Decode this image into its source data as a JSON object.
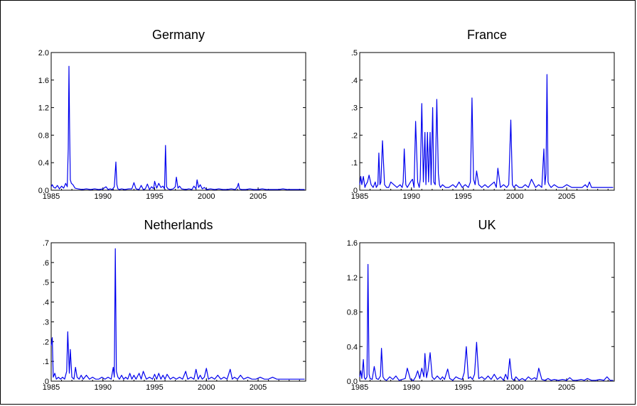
{
  "chart_data": [
    {
      "type": "line",
      "title": "Germany",
      "xlim": [
        1985,
        2009.6
      ],
      "ylim": [
        0,
        2.0
      ],
      "x_ticks": [
        "1985",
        "1990",
        "1995",
        "2000",
        "2005"
      ],
      "y_ticks": [
        "0.0",
        "0.4",
        "0.8",
        "1.2",
        "1.6",
        "2.0"
      ],
      "grid": false,
      "line_color": "#0000ee",
      "x": [
        1985.0,
        1985.1,
        1985.25,
        1985.4,
        1985.6,
        1985.8,
        1986.0,
        1986.2,
        1986.4,
        1986.55,
        1986.65,
        1986.72,
        1986.78,
        1986.85,
        1986.95,
        1987.1,
        1987.3,
        1987.6,
        1988.0,
        1988.4,
        1988.8,
        1989.2,
        1989.6,
        1990.0,
        1990.3,
        1990.5,
        1990.7,
        1990.9,
        1991.1,
        1991.25,
        1991.35,
        1991.45,
        1991.6,
        1991.8,
        1992.1,
        1992.5,
        1992.8,
        1993.0,
        1993.2,
        1993.5,
        1993.7,
        1993.9,
        1994.1,
        1994.3,
        1994.5,
        1994.7,
        1994.9,
        1995.0,
        1995.2,
        1995.4,
        1995.6,
        1995.8,
        1995.95,
        1996.05,
        1996.15,
        1996.3,
        1996.5,
        1996.8,
        1997.0,
        1997.1,
        1997.25,
        1997.4,
        1997.6,
        1998.0,
        1998.3,
        1998.6,
        1998.8,
        1999.0,
        1999.1,
        1999.25,
        1999.4,
        1999.6,
        1999.8,
        2000.0,
        2000.4,
        2000.8,
        2001.2,
        2001.6,
        2002.0,
        2002.4,
        2002.8,
        2003.0,
        2003.1,
        2003.2,
        2003.4,
        2003.8,
        2004.2,
        2004.6,
        2005.0,
        2005.4,
        2005.8,
        2006.2,
        2006.6,
        2007.0,
        2007.4,
        2007.8,
        2008.2,
        2008.6,
        2009.0,
        2009.5
      ],
      "y": [
        0.05,
        0.08,
        0.04,
        0.03,
        0.07,
        0.02,
        0.06,
        0.03,
        0.1,
        0.05,
        0.6,
        1.8,
        0.9,
        0.15,
        0.1,
        0.08,
        0.03,
        0.02,
        0.01,
        0.02,
        0.01,
        0.02,
        0.01,
        0.02,
        0.05,
        0.01,
        0.02,
        0.01,
        0.05,
        0.41,
        0.08,
        0.02,
        0.01,
        0.02,
        0.01,
        0.02,
        0.02,
        0.11,
        0.02,
        0.01,
        0.07,
        0.01,
        0.02,
        0.09,
        0.01,
        0.05,
        0.02,
        0.13,
        0.03,
        0.1,
        0.04,
        0.06,
        0.02,
        0.65,
        0.05,
        0.02,
        0.01,
        0.02,
        0.05,
        0.19,
        0.03,
        0.06,
        0.02,
        0.01,
        0.02,
        0.01,
        0.06,
        0.02,
        0.15,
        0.04,
        0.08,
        0.02,
        0.04,
        0.01,
        0.02,
        0.01,
        0.02,
        0.01,
        0.01,
        0.02,
        0.01,
        0.05,
        0.1,
        0.02,
        0.01,
        0.01,
        0.02,
        0.01,
        0.01,
        0.02,
        0.01,
        0.01,
        0.01,
        0.01,
        0.02,
        0.01,
        0.01,
        0.01,
        0.01,
        0.01
      ]
    },
    {
      "type": "line",
      "title": "France",
      "xlim": [
        1985,
        2009.6
      ],
      "ylim": [
        0,
        0.5
      ],
      "x_ticks": [
        "1985",
        "1990",
        "1995",
        "2000",
        "2005"
      ],
      "y_ticks": [
        ".0",
        ".1",
        ".2",
        ".3",
        ".4",
        ".5"
      ],
      "grid": false,
      "line_color": "#0000ee",
      "x": [
        1985.0,
        1985.1,
        1985.2,
        1985.35,
        1985.5,
        1985.6,
        1985.75,
        1985.9,
        1986.1,
        1986.3,
        1986.5,
        1986.6,
        1986.75,
        1986.85,
        1986.95,
        1987.05,
        1987.2,
        1987.4,
        1987.6,
        1987.8,
        1988.0,
        1988.3,
        1988.6,
        1988.9,
        1989.1,
        1989.2,
        1989.3,
        1989.45,
        1989.6,
        1989.9,
        1990.1,
        1990.25,
        1990.4,
        1990.6,
        1990.75,
        1990.85,
        1991.0,
        1991.15,
        1991.3,
        1991.4,
        1991.55,
        1991.65,
        1991.8,
        1991.9,
        1992.05,
        1992.15,
        1992.3,
        1992.45,
        1992.6,
        1992.7,
        1992.8,
        1993.0,
        1993.3,
        1993.6,
        1994.0,
        1994.3,
        1994.6,
        1994.9,
        1995.2,
        1995.5,
        1995.7,
        1995.85,
        1996.0,
        1996.15,
        1996.3,
        1996.5,
        1996.8,
        1997.1,
        1997.4,
        1997.7,
        1998.0,
        1998.2,
        1998.35,
        1998.6,
        1998.9,
        1999.2,
        1999.4,
        1999.6,
        1999.75,
        1999.9,
        2000.1,
        2000.4,
        2000.7,
        2001.0,
        2001.3,
        2001.6,
        2002.0,
        2002.3,
        2002.6,
        2002.8,
        2002.9,
        2003.0,
        2003.1,
        2003.2,
        2003.3,
        2003.5,
        2003.8,
        2004.2,
        2004.6,
        2005.0,
        2005.5,
        2006.0,
        2006.5,
        2006.8,
        2007.0,
        2007.2,
        2007.4,
        2007.8,
        2008.3,
        2008.8,
        2009.2,
        2009.5
      ],
      "y": [
        0.02,
        0.05,
        0.02,
        0.05,
        0.01,
        0.02,
        0.03,
        0.055,
        0.02,
        0.01,
        0.03,
        0.01,
        0.02,
        0.135,
        0.02,
        0.03,
        0.18,
        0.02,
        0.01,
        0.01,
        0.03,
        0.02,
        0.01,
        0.02,
        0.01,
        0.03,
        0.15,
        0.02,
        0.01,
        0.03,
        0.04,
        0.01,
        0.25,
        0.03,
        0.01,
        0.04,
        0.315,
        0.03,
        0.21,
        0.02,
        0.21,
        0.03,
        0.21,
        0.02,
        0.3,
        0.03,
        0.02,
        0.33,
        0.06,
        0.02,
        0.01,
        0.02,
        0.01,
        0.01,
        0.02,
        0.01,
        0.03,
        0.01,
        0.02,
        0.01,
        0.03,
        0.335,
        0.04,
        0.02,
        0.07,
        0.02,
        0.01,
        0.02,
        0.01,
        0.02,
        0.03,
        0.01,
        0.08,
        0.01,
        0.02,
        0.01,
        0.02,
        0.255,
        0.02,
        0.01,
        0.02,
        0.01,
        0.01,
        0.02,
        0.01,
        0.04,
        0.01,
        0.02,
        0.01,
        0.15,
        0.02,
        0.06,
        0.42,
        0.03,
        0.02,
        0.01,
        0.02,
        0.01,
        0.01,
        0.02,
        0.01,
        0.01,
        0.01,
        0.02,
        0.01,
        0.03,
        0.01,
        0.01,
        0.01,
        0.01,
        0.01,
        0.01
      ]
    },
    {
      "type": "line",
      "title": "Netherlands",
      "xlim": [
        1985,
        2009.6
      ],
      "ylim": [
        0,
        0.7
      ],
      "x_ticks": [
        "1985",
        "1990",
        "1995",
        "2000",
        "2005"
      ],
      "y_ticks": [
        ".0",
        ".1",
        ".2",
        ".3",
        ".4",
        ".5",
        ".6",
        ".7"
      ],
      "grid": false,
      "line_color": "#0000ee",
      "x": [
        1985.0,
        1985.1,
        1985.2,
        1985.35,
        1985.5,
        1985.7,
        1985.9,
        1986.1,
        1986.3,
        1986.5,
        1986.6,
        1986.75,
        1986.85,
        1987.0,
        1987.2,
        1987.35,
        1987.5,
        1987.7,
        1987.9,
        1988.1,
        1988.4,
        1988.7,
        1989.0,
        1989.3,
        1989.6,
        1989.9,
        1990.2,
        1990.5,
        1990.8,
        1991.0,
        1991.1,
        1991.2,
        1991.3,
        1991.45,
        1991.6,
        1991.8,
        1992.0,
        1992.2,
        1992.4,
        1992.6,
        1992.8,
        1993.0,
        1993.2,
        1993.5,
        1993.7,
        1993.9,
        1994.2,
        1994.5,
        1994.8,
        1995.0,
        1995.2,
        1995.4,
        1995.6,
        1995.8,
        1996.0,
        1996.2,
        1996.5,
        1996.8,
        1997.1,
        1997.4,
        1997.7,
        1998.0,
        1998.2,
        1998.5,
        1998.8,
        1999.0,
        1999.2,
        1999.4,
        1999.6,
        1999.8,
        2000.0,
        2000.2,
        2000.5,
        2000.8,
        2001.1,
        2001.4,
        2001.7,
        2002.0,
        2002.3,
        2002.5,
        2002.7,
        2003.0,
        2003.3,
        2003.6,
        2004.0,
        2004.4,
        2004.8,
        2005.2,
        2005.6,
        2006.0,
        2006.4,
        2006.8,
        2007.2,
        2007.6,
        2008.0,
        2008.4,
        2008.8,
        2009.2,
        2009.5
      ],
      "y": [
        0.18,
        0.22,
        0.02,
        0.04,
        0.01,
        0.02,
        0.01,
        0.02,
        0.01,
        0.05,
        0.25,
        0.04,
        0.16,
        0.02,
        0.01,
        0.07,
        0.02,
        0.01,
        0.03,
        0.01,
        0.03,
        0.01,
        0.02,
        0.01,
        0.01,
        0.02,
        0.01,
        0.02,
        0.01,
        0.07,
        0.02,
        0.67,
        0.05,
        0.02,
        0.01,
        0.03,
        0.01,
        0.02,
        0.01,
        0.04,
        0.01,
        0.03,
        0.01,
        0.04,
        0.01,
        0.05,
        0.01,
        0.02,
        0.01,
        0.035,
        0.01,
        0.04,
        0.01,
        0.03,
        0.01,
        0.035,
        0.01,
        0.02,
        0.01,
        0.02,
        0.01,
        0.05,
        0.01,
        0.02,
        0.01,
        0.06,
        0.01,
        0.03,
        0.01,
        0.02,
        0.065,
        0.01,
        0.02,
        0.01,
        0.03,
        0.01,
        0.02,
        0.01,
        0.06,
        0.01,
        0.02,
        0.01,
        0.03,
        0.01,
        0.02,
        0.01,
        0.01,
        0.02,
        0.01,
        0.01,
        0.02,
        0.01,
        0.01,
        0.01,
        0.01,
        0.01,
        0.01,
        0.01,
        0.01
      ]
    },
    {
      "type": "line",
      "title": "UK",
      "xlim": [
        1985,
        2009.6
      ],
      "ylim": [
        0,
        1.6
      ],
      "x_ticks": [
        "1985",
        "1990",
        "1995",
        "2000",
        "2005"
      ],
      "y_ticks": [
        "0.0",
        "0.4",
        "0.8",
        "1.2",
        "1.6"
      ],
      "grid": false,
      "line_color": "#0000ee",
      "x": [
        1985.0,
        1985.1,
        1985.2,
        1985.35,
        1985.45,
        1985.55,
        1985.7,
        1985.8,
        1985.9,
        1986.0,
        1986.2,
        1986.4,
        1986.6,
        1986.8,
        1987.0,
        1987.1,
        1987.25,
        1987.4,
        1987.6,
        1987.9,
        1988.2,
        1988.5,
        1988.8,
        1989.1,
        1989.4,
        1989.6,
        1989.9,
        1990.2,
        1990.4,
        1990.6,
        1990.8,
        1991.0,
        1991.2,
        1991.3,
        1991.45,
        1991.6,
        1991.8,
        1992.0,
        1992.2,
        1992.5,
        1992.8,
        1993.0,
        1993.2,
        1993.5,
        1993.7,
        1994.0,
        1994.3,
        1994.6,
        1994.9,
        1995.1,
        1995.3,
        1995.5,
        1995.7,
        1995.9,
        1996.1,
        1996.3,
        1996.5,
        1996.8,
        1997.1,
        1997.4,
        1997.7,
        1998.0,
        1998.3,
        1998.6,
        1998.9,
        1999.1,
        1999.3,
        1999.5,
        1999.7,
        1999.9,
        2000.1,
        2000.4,
        2000.7,
        2001.0,
        2001.3,
        2001.6,
        2001.9,
        2002.1,
        2002.3,
        2002.6,
        2002.9,
        2003.2,
        2003.5,
        2003.8,
        2004.2,
        2004.6,
        2005.0,
        2005.3,
        2005.6,
        2006.0,
        2006.4,
        2006.7,
        2007.0,
        2007.4,
        2007.8,
        2008.2,
        2008.6,
        2008.9,
        2009.2,
        2009.5
      ],
      "y": [
        0.05,
        0.12,
        0.03,
        0.25,
        0.04,
        0.02,
        0.05,
        1.35,
        0.08,
        0.03,
        0.02,
        0.17,
        0.03,
        0.02,
        0.06,
        0.38,
        0.05,
        0.02,
        0.01,
        0.05,
        0.02,
        0.06,
        0.01,
        0.02,
        0.03,
        0.15,
        0.02,
        0.01,
        0.05,
        0.12,
        0.03,
        0.15,
        0.05,
        0.32,
        0.04,
        0.12,
        0.33,
        0.05,
        0.02,
        0.06,
        0.02,
        0.05,
        0.02,
        0.14,
        0.03,
        0.01,
        0.05,
        0.03,
        0.02,
        0.1,
        0.4,
        0.03,
        0.05,
        0.02,
        0.08,
        0.45,
        0.03,
        0.05,
        0.02,
        0.06,
        0.02,
        0.08,
        0.02,
        0.05,
        0.01,
        0.08,
        0.02,
        0.26,
        0.03,
        0.01,
        0.05,
        0.01,
        0.03,
        0.01,
        0.05,
        0.02,
        0.04,
        0.02,
        0.15,
        0.02,
        0.01,
        0.03,
        0.01,
        0.02,
        0.01,
        0.02,
        0.01,
        0.04,
        0.01,
        0.01,
        0.02,
        0.01,
        0.03,
        0.01,
        0.01,
        0.02,
        0.01,
        0.05,
        0.01,
        0.01
      ]
    }
  ]
}
